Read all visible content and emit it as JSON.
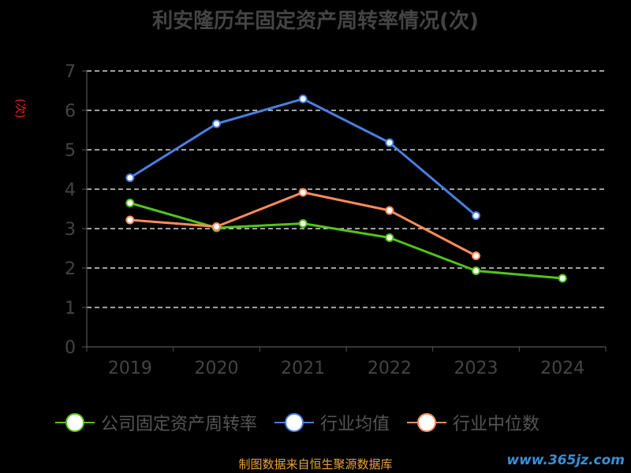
{
  "title": "利安隆历年固定资产周转率情况(次)",
  "ylabel": "(次)",
  "source": "制图数据来自恒生聚源数据库",
  "watermark": "www.365jz.com",
  "colors": {
    "company": "#52c41a",
    "industry_avg": "#4a7fe0",
    "industry_median": "#ff8c5a",
    "grid": "#ffffff",
    "axis": "#555555"
  },
  "chart_data": {
    "type": "line",
    "title": "利安隆历年固定资产周转率情况(次)",
    "ylabel": "(次)",
    "categories": [
      "2019",
      "2020",
      "2021",
      "2022",
      "2023",
      "2024"
    ],
    "ylim": [
      0,
      7
    ],
    "yticks": [
      0,
      1,
      2,
      3,
      4,
      5,
      6,
      7
    ],
    "grid": true,
    "legend_position": "bottom",
    "series": [
      {
        "name": "公司固定资产周转率",
        "color": "#52c41a",
        "values": [
          3.65,
          3.02,
          3.13,
          2.77,
          1.93,
          1.74
        ]
      },
      {
        "name": "行业均值",
        "color": "#4a7fe0",
        "values": [
          4.29,
          5.66,
          6.29,
          5.18,
          3.33,
          null
        ]
      },
      {
        "name": "行业中位数",
        "color": "#ff8c5a",
        "values": [
          3.22,
          3.05,
          3.92,
          3.46,
          2.31,
          null
        ]
      }
    ]
  }
}
